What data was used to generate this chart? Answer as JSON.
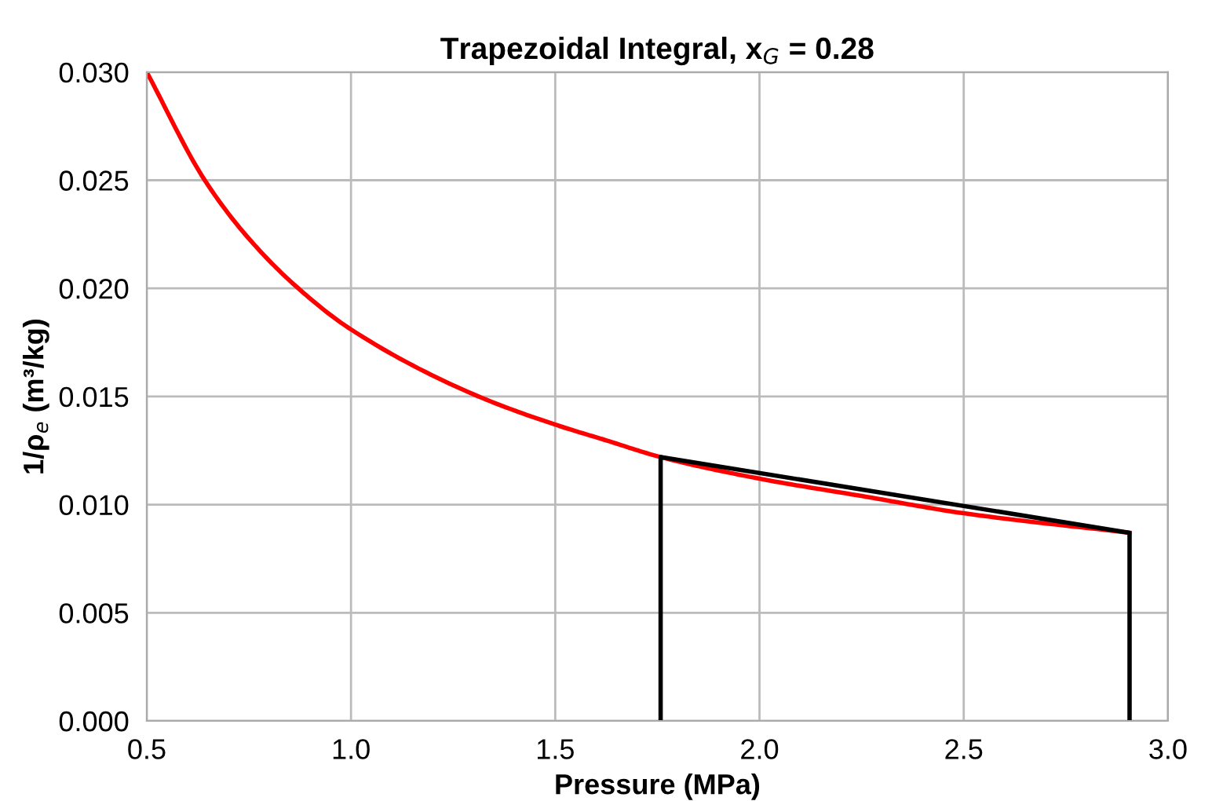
{
  "chart_data": {
    "type": "line",
    "title": "Trapezoidal Integral, x$_{G}$ = 0.28",
    "xlabel": "Pressure (MPa)",
    "ylabel": "1/ρ$_{e}$ (m³/kg)",
    "series": [
      {
        "color": "#ff0000",
        "x": [
          0.5,
          0.642,
          0.75,
          0.871,
          1.0,
          1.3,
          1.5,
          1.62,
          1.758,
          2.0,
          2.25,
          2.5,
          2.906
        ],
        "values": [
          0.03,
          0.025,
          0.0223,
          0.02,
          0.0181,
          0.0151,
          0.0137,
          0.013,
          0.0122,
          0.0112,
          0.0104,
          0.0096,
          0.0087
        ]
      },
      {
        "color": "#000000",
        "x": [
          1.758,
          1.758,
          2.906,
          2.906
        ],
        "values": [
          0,
          0.0122,
          0.0087,
          0
        ]
      }
    ],
    "xlim": [
      0.5,
      3.0
    ],
    "ylim": [
      0,
      0.03
    ],
    "xticks": [
      0.5,
      {
        "value": 1,
        "label": "1.0"
      },
      1.5,
      {
        "value": 2,
        "label": "2.0"
      },
      2.5,
      {
        "value": 3,
        "label": "3.0"
      }
    ],
    "yticks": [
      {
        "value": 0,
        "label": "0.000"
      },
      {
        "value": 0.005,
        "label": "0.005"
      },
      {
        "value": 0.01,
        "label": "0.010"
      },
      {
        "value": 0.015,
        "label": "0.015"
      },
      {
        "value": 0.02,
        "label": "0.020"
      },
      {
        "value": 0.025,
        "label": "0.025"
      },
      {
        "value": 0.03,
        "label": "0.030"
      }
    ],
    "grid": true,
    "marker": "none",
    "line_style": "solid"
  }
}
